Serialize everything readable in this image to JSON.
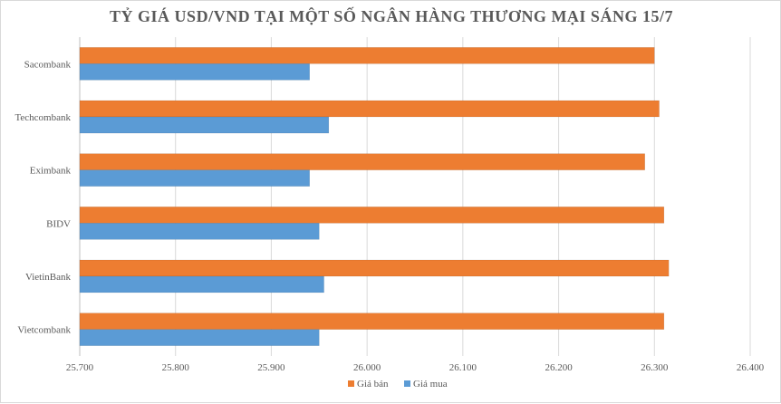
{
  "chart_data": {
    "type": "bar",
    "orientation": "horizontal",
    "title": "TỶ GIÁ USD/VND TẠI MỘT SỐ NGÂN HÀNG THƯƠNG MẠI SÁNG 15/7",
    "categories": [
      "Sacombank",
      "Techcombank",
      "Eximbank",
      "BIDV",
      "VietinBank",
      "Vietcombank"
    ],
    "series": [
      {
        "name": "Giá bán",
        "color": "#ED7D31",
        "values": [
          26300,
          26305,
          26290,
          26310,
          26315,
          26310
        ]
      },
      {
        "name": "Giá mua",
        "color": "#5B9BD5",
        "values": [
          25940,
          25960,
          25940,
          25950,
          25955,
          25950
        ]
      }
    ],
    "xlim": [
      25700,
      26400
    ],
    "xticks": [
      25700,
      25800,
      25900,
      26000,
      26100,
      26200,
      26300,
      26400
    ],
    "xtick_labels": [
      "25.700",
      "25.800",
      "25.900",
      "26.000",
      "26.100",
      "26.200",
      "26.300",
      "26.400"
    ],
    "grid": true,
    "legend_position": "bottom"
  }
}
